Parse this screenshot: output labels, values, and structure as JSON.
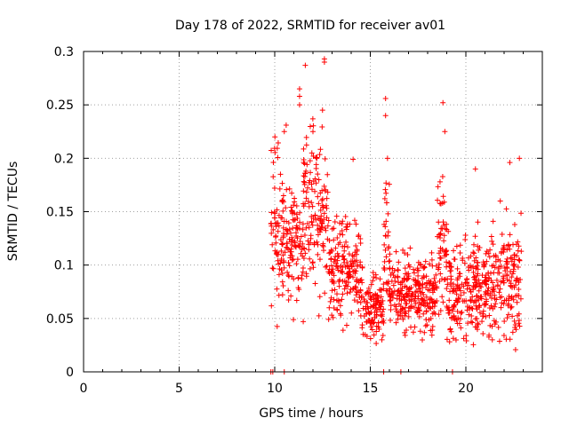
{
  "chart_data": {
    "type": "scatter",
    "title": "Day 178 of 2022, SRMTID for receiver av01",
    "xlabel": "GPS time / hours",
    "ylabel": "SRMTID / TECUs",
    "xlim": [
      0,
      24
    ],
    "ylim": [
      0,
      0.3
    ],
    "xticks": [
      "0",
      "5",
      "10",
      "15",
      "20"
    ],
    "xtick_values": [
      0,
      5,
      10,
      15,
      20
    ],
    "yticks": [
      "0",
      "0.05",
      "0.1",
      "0.15",
      "0.2",
      "0.25",
      "0.3"
    ],
    "ytick_values": [
      0,
      0.05,
      0.1,
      0.15,
      0.2,
      0.25,
      0.3
    ],
    "grid": true,
    "marker": "plus",
    "color": "#ff0000",
    "series": [
      {
        "name": "SRMTID",
        "x_range": [
          9.8,
          22.9
        ],
        "profile": [
          {
            "t_start": 9.8,
            "t_end": 10.4,
            "y_low": 0.04,
            "y_high": 0.23
          },
          {
            "t_start": 10.4,
            "t_end": 11.5,
            "y_low": 0.05,
            "y_high": 0.19
          },
          {
            "t_start": 11.5,
            "t_end": 12.8,
            "y_low": 0.05,
            "y_high": 0.26
          },
          {
            "t_start": 12.8,
            "t_end": 13.8,
            "y_low": 0.03,
            "y_high": 0.16
          },
          {
            "t_start": 13.8,
            "t_end": 14.6,
            "y_low": 0.03,
            "y_high": 0.15
          },
          {
            "t_start": 14.6,
            "t_end": 15.7,
            "y_low": 0.02,
            "y_high": 0.1
          },
          {
            "t_start": 15.7,
            "t_end": 16.0,
            "y_low": 0.03,
            "y_high": 0.2
          },
          {
            "t_start": 16.0,
            "t_end": 18.5,
            "y_low": 0.03,
            "y_high": 0.12
          },
          {
            "t_start": 18.5,
            "t_end": 19.0,
            "y_low": 0.05,
            "y_high": 0.2
          },
          {
            "t_start": 19.0,
            "t_end": 21.0,
            "y_low": 0.02,
            "y_high": 0.14
          },
          {
            "t_start": 21.0,
            "t_end": 22.9,
            "y_low": 0.02,
            "y_high": 0.15
          }
        ],
        "highlights": [
          {
            "x": 11.6,
            "y": 0.287
          },
          {
            "x": 12.6,
            "y": 0.293
          },
          {
            "x": 12.6,
            "y": 0.29
          },
          {
            "x": 11.3,
            "y": 0.265
          },
          {
            "x": 11.3,
            "y": 0.258
          },
          {
            "x": 11.3,
            "y": 0.25
          },
          {
            "x": 12.5,
            "y": 0.245
          },
          {
            "x": 15.8,
            "y": 0.256
          },
          {
            "x": 15.8,
            "y": 0.24
          },
          {
            "x": 18.8,
            "y": 0.252
          },
          {
            "x": 18.9,
            "y": 0.225
          },
          {
            "x": 10.6,
            "y": 0.231
          },
          {
            "x": 10.5,
            "y": 0.225
          },
          {
            "x": 12.0,
            "y": 0.225
          },
          {
            "x": 12.2,
            "y": 0.2
          },
          {
            "x": 14.1,
            "y": 0.199
          },
          {
            "x": 15.9,
            "y": 0.2
          },
          {
            "x": 20.5,
            "y": 0.19
          },
          {
            "x": 22.3,
            "y": 0.196
          },
          {
            "x": 22.8,
            "y": 0.2
          },
          {
            "x": 21.8,
            "y": 0.16
          },
          {
            "x": 9.8,
            "y": 0.0
          },
          {
            "x": 9.9,
            "y": 0.0
          },
          {
            "x": 10.5,
            "y": 0.0
          },
          {
            "x": 15.7,
            "y": 0.0
          },
          {
            "x": 16.6,
            "y": 0.0
          },
          {
            "x": 19.3,
            "y": 0.0
          }
        ]
      }
    ]
  }
}
